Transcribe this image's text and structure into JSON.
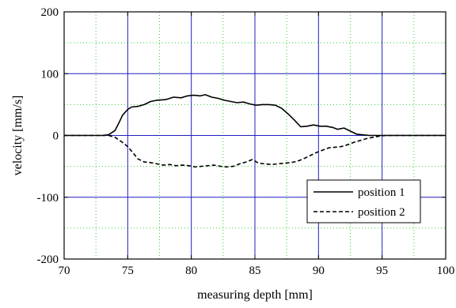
{
  "chart_data": {
    "type": "line",
    "xlabel": "measuring depth [mm]",
    "ylabel": "velocity [mm/s]",
    "xlim": [
      70,
      100
    ],
    "ylim": [
      -200,
      200
    ],
    "x_ticks": [
      70,
      75,
      80,
      85,
      90,
      95,
      100
    ],
    "y_ticks": [
      -200,
      -100,
      0,
      100,
      200
    ],
    "x_tick_labels": [
      "70",
      "75",
      "80",
      "85",
      "90",
      "95",
      "100"
    ],
    "y_tick_labels": [
      "-200",
      "-100",
      "0",
      "100",
      "200"
    ],
    "x_minor_step": 2.5,
    "y_minor_step": 50,
    "grid": true,
    "legend_position": "bottom-right",
    "colors": {
      "major_grid": "#1f1fbf",
      "minor_grid": "#33cc33",
      "axes": "#000000",
      "series": "#000000"
    },
    "series": [
      {
        "name": "position 1",
        "style": "solid",
        "points": [
          [
            70,
            0
          ],
          [
            73,
            0
          ],
          [
            73.5,
            1
          ],
          [
            74,
            8
          ],
          [
            74.3,
            20
          ],
          [
            74.6,
            33
          ],
          [
            75,
            42
          ],
          [
            75.3,
            46
          ],
          [
            75.8,
            47
          ],
          [
            76.3,
            50
          ],
          [
            76.8,
            55
          ],
          [
            77.3,
            57
          ],
          [
            78,
            58
          ],
          [
            78.6,
            62
          ],
          [
            79.2,
            61
          ],
          [
            79.7,
            64
          ],
          [
            80.2,
            65
          ],
          [
            80.7,
            64
          ],
          [
            81.1,
            66
          ],
          [
            81.6,
            62
          ],
          [
            82.1,
            60
          ],
          [
            82.6,
            57
          ],
          [
            83.1,
            55
          ],
          [
            83.6,
            53
          ],
          [
            84.1,
            54
          ],
          [
            84.6,
            51
          ],
          [
            85.1,
            49
          ],
          [
            85.6,
            50
          ],
          [
            86.1,
            50
          ],
          [
            86.6,
            49
          ],
          [
            87.1,
            44
          ],
          [
            87.6,
            35
          ],
          [
            88.1,
            25
          ],
          [
            88.6,
            14
          ],
          [
            89.1,
            15
          ],
          [
            89.6,
            17
          ],
          [
            90.1,
            15
          ],
          [
            90.6,
            15
          ],
          [
            91.1,
            13
          ],
          [
            91.5,
            10
          ],
          [
            92,
            12
          ],
          [
            92.5,
            7
          ],
          [
            93,
            2
          ],
          [
            94,
            0
          ],
          [
            100,
            0
          ]
        ]
      },
      {
        "name": "position 2",
        "style": "dashed",
        "points": [
          [
            70,
            0
          ],
          [
            73.5,
            0
          ],
          [
            74,
            -3
          ],
          [
            74.5,
            -10
          ],
          [
            75,
            -18
          ],
          [
            75.4,
            -28
          ],
          [
            75.8,
            -38
          ],
          [
            76.3,
            -43
          ],
          [
            76.8,
            -44
          ],
          [
            77.3,
            -46
          ],
          [
            77.8,
            -48
          ],
          [
            78.3,
            -47
          ],
          [
            78.8,
            -49
          ],
          [
            79.3,
            -48
          ],
          [
            79.8,
            -49
          ],
          [
            80.3,
            -51
          ],
          [
            80.8,
            -50
          ],
          [
            81.3,
            -49
          ],
          [
            81.8,
            -48
          ],
          [
            82.3,
            -50
          ],
          [
            82.8,
            -51
          ],
          [
            83.3,
            -50
          ],
          [
            83.8,
            -46
          ],
          [
            84.3,
            -43
          ],
          [
            84.8,
            -39
          ],
          [
            85.3,
            -45
          ],
          [
            85.8,
            -46
          ],
          [
            86.3,
            -47
          ],
          [
            86.8,
            -46
          ],
          [
            87.3,
            -45
          ],
          [
            87.8,
            -44
          ],
          [
            88.3,
            -42
          ],
          [
            88.8,
            -38
          ],
          [
            89.3,
            -33
          ],
          [
            89.8,
            -28
          ],
          [
            90.3,
            -24
          ],
          [
            90.8,
            -20
          ],
          [
            91.3,
            -19
          ],
          [
            91.8,
            -18
          ],
          [
            92.3,
            -15
          ],
          [
            92.8,
            -11
          ],
          [
            93.3,
            -8
          ],
          [
            93.8,
            -5
          ],
          [
            94.3,
            -3
          ],
          [
            94.8,
            -1
          ],
          [
            95.3,
            0
          ],
          [
            100,
            0
          ]
        ]
      }
    ]
  }
}
